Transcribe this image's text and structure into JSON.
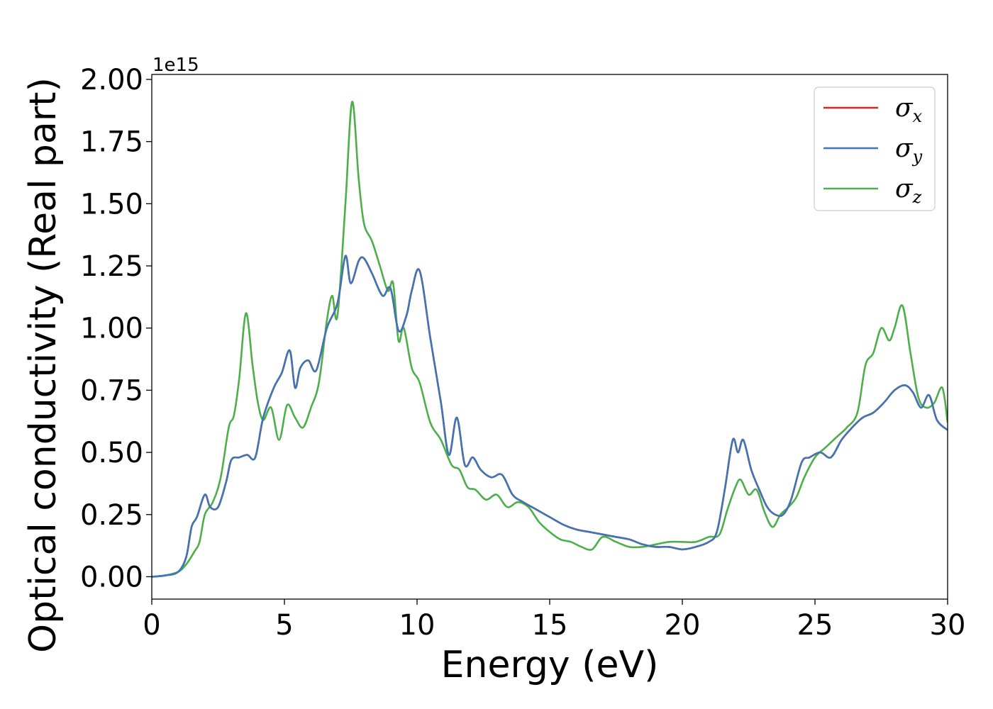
{
  "chart_data": {
    "type": "line",
    "xlabel": "Energy (eV)",
    "ylabel": "Optical conductivity (Real part)",
    "y_offset_label": "1e15",
    "xlim": [
      0,
      30
    ],
    "ylim": [
      -0.09,
      2.02
    ],
    "x_ticks": [
      0,
      5,
      10,
      15,
      20,
      25,
      30
    ],
    "x_tick_labels": [
      "0",
      "5",
      "10",
      "15",
      "20",
      "25",
      "30"
    ],
    "y_ticks": [
      0.0,
      0.25,
      0.5,
      0.75,
      1.0,
      1.25,
      1.5,
      1.75,
      2.0
    ],
    "y_tick_labels": [
      "0.00",
      "0.25",
      "0.50",
      "0.75",
      "1.00",
      "1.25",
      "1.50",
      "1.75",
      "2.00"
    ],
    "grid": false,
    "legend_position": "top-right",
    "legend": [
      {
        "symbol": "σ",
        "sub": "x",
        "color": "#d62728"
      },
      {
        "symbol": "σ",
        "sub": "y",
        "color": "#3f75b5"
      },
      {
        "symbol": "σ",
        "sub": "z",
        "color": "#4daf4a"
      }
    ],
    "series": [
      {
        "name": "σx",
        "color": "#d62728",
        "x": [
          0,
          0.5,
          1.0,
          1.3,
          1.5,
          1.7,
          2.0,
          2.2,
          2.5,
          2.8,
          3.0,
          3.3,
          3.6,
          3.9,
          4.2,
          4.6,
          4.9,
          5.2,
          5.4,
          5.6,
          5.9,
          6.2,
          6.6,
          7.0,
          7.3,
          7.5,
          7.8,
          8.0,
          8.3,
          8.7,
          9.0,
          9.3,
          9.6,
          9.8,
          10.1,
          10.5,
          10.9,
          11.2,
          11.5,
          11.8,
          12.1,
          12.4,
          12.8,
          13.2,
          13.6,
          14.0,
          14.5,
          15.0,
          15.5,
          16.0,
          16.5,
          17.0,
          17.5,
          18.0,
          18.5,
          19.0,
          19.5,
          20.0,
          20.5,
          21.0,
          21.3,
          21.6,
          21.9,
          22.1,
          22.3,
          22.6,
          22.9,
          23.2,
          23.5,
          23.8,
          24.1,
          24.5,
          24.8,
          25.2,
          25.6,
          26.0,
          26.4,
          26.8,
          27.2,
          27.6,
          28.0,
          28.4,
          28.7,
          29.0,
          29.3,
          29.6,
          30.0
        ],
        "values": [
          0.0,
          0.005,
          0.02,
          0.08,
          0.2,
          0.24,
          0.33,
          0.28,
          0.28,
          0.38,
          0.47,
          0.48,
          0.49,
          0.48,
          0.64,
          0.76,
          0.82,
          0.91,
          0.76,
          0.84,
          0.87,
          0.83,
          1.0,
          1.1,
          1.29,
          1.18,
          1.27,
          1.28,
          1.22,
          1.13,
          1.16,
          0.99,
          1.05,
          1.15,
          1.23,
          0.96,
          0.7,
          0.49,
          0.64,
          0.45,
          0.48,
          0.43,
          0.4,
          0.41,
          0.33,
          0.3,
          0.27,
          0.24,
          0.21,
          0.19,
          0.18,
          0.17,
          0.16,
          0.15,
          0.13,
          0.12,
          0.12,
          0.11,
          0.12,
          0.14,
          0.18,
          0.35,
          0.55,
          0.5,
          0.55,
          0.43,
          0.35,
          0.28,
          0.25,
          0.25,
          0.31,
          0.46,
          0.48,
          0.5,
          0.48,
          0.55,
          0.6,
          0.64,
          0.66,
          0.7,
          0.75,
          0.77,
          0.74,
          0.68,
          0.73,
          0.63,
          0.59
        ]
      },
      {
        "name": "σy",
        "color": "#3f75b5",
        "x": [
          0,
          0.5,
          1.0,
          1.3,
          1.5,
          1.7,
          2.0,
          2.2,
          2.5,
          2.8,
          3.0,
          3.3,
          3.6,
          3.9,
          4.2,
          4.6,
          4.9,
          5.2,
          5.4,
          5.6,
          5.9,
          6.2,
          6.6,
          7.0,
          7.3,
          7.5,
          7.8,
          8.0,
          8.3,
          8.7,
          9.0,
          9.3,
          9.6,
          9.8,
          10.1,
          10.5,
          10.9,
          11.2,
          11.5,
          11.8,
          12.1,
          12.4,
          12.8,
          13.2,
          13.6,
          14.0,
          14.5,
          15.0,
          15.5,
          16.0,
          16.5,
          17.0,
          17.5,
          18.0,
          18.5,
          19.0,
          19.5,
          20.0,
          20.5,
          21.0,
          21.3,
          21.6,
          21.9,
          22.1,
          22.3,
          22.6,
          22.9,
          23.2,
          23.5,
          23.8,
          24.1,
          24.5,
          24.8,
          25.2,
          25.6,
          26.0,
          26.4,
          26.8,
          27.2,
          27.6,
          28.0,
          28.4,
          28.7,
          29.0,
          29.3,
          29.6,
          30.0
        ],
        "values": [
          0.0,
          0.005,
          0.02,
          0.08,
          0.2,
          0.24,
          0.33,
          0.28,
          0.28,
          0.38,
          0.47,
          0.48,
          0.49,
          0.48,
          0.64,
          0.76,
          0.82,
          0.91,
          0.76,
          0.84,
          0.87,
          0.83,
          1.0,
          1.1,
          1.29,
          1.18,
          1.27,
          1.28,
          1.22,
          1.13,
          1.16,
          0.99,
          1.05,
          1.15,
          1.23,
          0.96,
          0.7,
          0.49,
          0.64,
          0.45,
          0.48,
          0.43,
          0.4,
          0.41,
          0.33,
          0.3,
          0.27,
          0.24,
          0.21,
          0.19,
          0.18,
          0.17,
          0.16,
          0.15,
          0.13,
          0.12,
          0.12,
          0.11,
          0.12,
          0.14,
          0.18,
          0.35,
          0.55,
          0.5,
          0.55,
          0.43,
          0.35,
          0.28,
          0.25,
          0.25,
          0.31,
          0.46,
          0.48,
          0.5,
          0.48,
          0.55,
          0.6,
          0.64,
          0.66,
          0.7,
          0.75,
          0.77,
          0.74,
          0.68,
          0.73,
          0.63,
          0.59
        ]
      },
      {
        "name": "σz",
        "color": "#4daf4a",
        "x": [
          0,
          0.5,
          1.0,
          1.3,
          1.6,
          1.8,
          2.0,
          2.3,
          2.6,
          2.9,
          3.1,
          3.3,
          3.55,
          3.8,
          4.0,
          4.2,
          4.5,
          4.8,
          5.1,
          5.4,
          5.7,
          6.0,
          6.3,
          6.6,
          6.8,
          7.0,
          7.3,
          7.55,
          7.8,
          8.0,
          8.3,
          8.6,
          8.9,
          9.1,
          9.3,
          9.5,
          9.8,
          10.1,
          10.5,
          10.9,
          11.3,
          11.6,
          11.9,
          12.2,
          12.6,
          13.0,
          13.4,
          13.8,
          14.2,
          14.6,
          15.0,
          15.4,
          15.8,
          16.2,
          16.6,
          17.0,
          17.5,
          18.0,
          18.5,
          19.0,
          19.5,
          20.0,
          20.5,
          21.0,
          21.4,
          21.7,
          22.0,
          22.2,
          22.5,
          22.8,
          23.1,
          23.4,
          23.7,
          24.0,
          24.3,
          24.6,
          25.0,
          25.4,
          25.8,
          26.2,
          26.6,
          26.9,
          27.2,
          27.5,
          27.8,
          28.0,
          28.3,
          28.6,
          28.9,
          29.2,
          29.5,
          29.8,
          30.0
        ],
        "values": [
          0.0,
          0.005,
          0.02,
          0.05,
          0.1,
          0.14,
          0.25,
          0.3,
          0.4,
          0.6,
          0.65,
          0.8,
          1.06,
          0.85,
          0.7,
          0.63,
          0.68,
          0.55,
          0.69,
          0.64,
          0.6,
          0.68,
          0.78,
          1.03,
          1.13,
          1.05,
          1.5,
          1.91,
          1.6,
          1.42,
          1.35,
          1.25,
          1.15,
          1.18,
          0.95,
          1.0,
          0.84,
          0.78,
          0.62,
          0.55,
          0.45,
          0.43,
          0.36,
          0.35,
          0.31,
          0.33,
          0.28,
          0.3,
          0.28,
          0.22,
          0.18,
          0.15,
          0.14,
          0.12,
          0.11,
          0.16,
          0.14,
          0.12,
          0.12,
          0.13,
          0.14,
          0.14,
          0.14,
          0.16,
          0.17,
          0.27,
          0.36,
          0.39,
          0.33,
          0.35,
          0.26,
          0.2,
          0.25,
          0.28,
          0.32,
          0.4,
          0.48,
          0.52,
          0.56,
          0.6,
          0.66,
          0.85,
          0.9,
          1.0,
          0.95,
          1.0,
          1.09,
          0.9,
          0.72,
          0.68,
          0.7,
          0.76,
          0.62
        ]
      }
    ]
  }
}
